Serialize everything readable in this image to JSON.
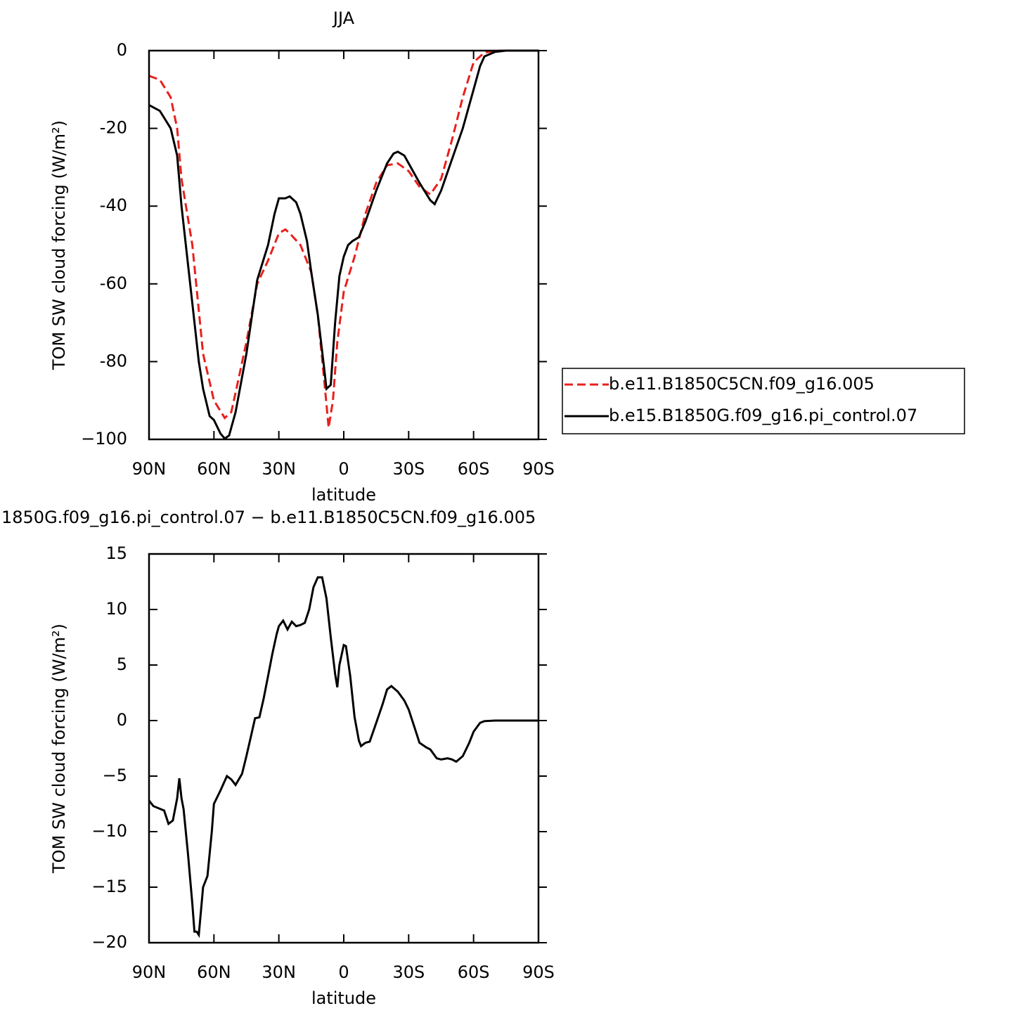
{
  "chart_data": [
    {
      "type": "line",
      "title": "JJA",
      "x_label": "latitude",
      "y_label": "TOM SW cloud forcing (W/m²)",
      "xlim": [
        90,
        -90
      ],
      "ylim": [
        -100,
        0
      ],
      "xticks": [
        {
          "value": 90,
          "label": "90N"
        },
        {
          "value": 60,
          "label": "60N"
        },
        {
          "value": 30,
          "label": "30N"
        },
        0,
        {
          "value": -30,
          "label": "30S"
        },
        {
          "value": -60,
          "label": "60S"
        },
        {
          "value": -90,
          "label": "90S"
        }
      ],
      "yticks": [
        0,
        -20,
        -40,
        -60,
        -80,
        {
          "value": -100,
          "label": "−100"
        }
      ],
      "legend": "right",
      "series": [
        {
          "name": "b.e11.B1850C5CN.f09_g16.005",
          "color": "#e8201c",
          "dash": true,
          "x": [
            90,
            85,
            80,
            77,
            75,
            70,
            65,
            60,
            55,
            52,
            50,
            45,
            40,
            35,
            30,
            27,
            25,
            20,
            15,
            12,
            9,
            7,
            5,
            3,
            0,
            -5,
            -10,
            -15,
            -20,
            -25,
            -30,
            -35,
            -40,
            -45,
            -50,
            -55,
            -60,
            -65,
            -70,
            -75,
            -80,
            -90
          ],
          "values": [
            -6.5,
            -7.5,
            -12,
            -20,
            -33,
            -50,
            -78,
            -90,
            -94.5,
            -93,
            -88,
            -75,
            -60,
            -54,
            -47,
            -46,
            -47,
            -50,
            -57,
            -68,
            -85,
            -97,
            -90,
            -75,
            -62,
            -53,
            -42,
            -34,
            -29.5,
            -29,
            -31,
            -35,
            -37,
            -33,
            -23,
            -12,
            -3,
            -0.5,
            0,
            0,
            0,
            0
          ]
        },
        {
          "name": "b.e15.B1850G.f09_g16.pi_control.07",
          "color": "#000000",
          "dash": false,
          "x": [
            90,
            85,
            80,
            77,
            75,
            70,
            67,
            65,
            62,
            60,
            57,
            55,
            53,
            50,
            45,
            40,
            35,
            32,
            30,
            27,
            25,
            22,
            20,
            17,
            15,
            12,
            9,
            8,
            6,
            4,
            2,
            0,
            -2,
            -4,
            -7,
            -10,
            -15,
            -20,
            -23,
            -25,
            -28,
            -30,
            -35,
            -40,
            -42,
            -45,
            -50,
            -55,
            -60,
            -63,
            -65,
            -70,
            -75,
            -80,
            -90
          ],
          "values": [
            -14,
            -15.5,
            -20,
            -27,
            -40,
            -65,
            -80,
            -87,
            -94,
            -95,
            -98.5,
            -99.8,
            -99,
            -93,
            -78,
            -59,
            -50,
            -42,
            -38,
            -38,
            -37.5,
            -39,
            -42,
            -49,
            -57,
            -68,
            -82,
            -87,
            -86,
            -70,
            -58,
            -53,
            -50,
            -49,
            -48,
            -44,
            -36,
            -29,
            -26.5,
            -26,
            -27,
            -29,
            -34,
            -38.5,
            -39.5,
            -36,
            -28,
            -20,
            -10,
            -4,
            -1.5,
            -0.3,
            0,
            0,
            0
          ]
        }
      ]
    },
    {
      "type": "line",
      "title": "1850G.f09_g16.pi_control.07 − b.e11.B1850C5CN.f09_g16.005",
      "x_label": "latitude",
      "y_label": "TOM SW cloud forcing (W/m²)",
      "xlim": [
        90,
        -90
      ],
      "ylim": [
        -20,
        15
      ],
      "xticks": [
        {
          "value": 90,
          "label": "90N"
        },
        {
          "value": 60,
          "label": "60N"
        },
        {
          "value": 30,
          "label": "30N"
        },
        0,
        {
          "value": -30,
          "label": "30S"
        },
        {
          "value": -60,
          "label": "60S"
        },
        {
          "value": -90,
          "label": "90S"
        }
      ],
      "yticks": [
        15,
        10,
        5,
        0,
        {
          "value": -5,
          "label": "−5"
        },
        {
          "value": -10,
          "label": "−10"
        },
        {
          "value": -15,
          "label": "−15"
        },
        {
          "value": -20,
          "label": "−20"
        }
      ],
      "series": [
        {
          "color": "#000000",
          "dash": false,
          "x": [
            90,
            88,
            83,
            81,
            79,
            77,
            76,
            75,
            74,
            72,
            70,
            69,
            68,
            67,
            65,
            63,
            61,
            60,
            57,
            54,
            52,
            50,
            47,
            45,
            43,
            41,
            39,
            37,
            35,
            33,
            31,
            30,
            28,
            26,
            24,
            22,
            20,
            18,
            16,
            14,
            12,
            10,
            8,
            6,
            4,
            3,
            2,
            0,
            -1,
            -3,
            -5,
            -7,
            -8,
            -10,
            -12,
            -15,
            -18,
            -20,
            -22,
            -25,
            -28,
            -30,
            -33,
            -35,
            -38,
            -40,
            -43,
            -45,
            -48,
            -50,
            -52,
            -55,
            -58,
            -60,
            -63,
            -65,
            -70,
            -80,
            -90
          ],
          "values": [
            -7.2,
            -7.7,
            -8.1,
            -9.3,
            -9,
            -7,
            -5.2,
            -7,
            -8,
            -12,
            -16.5,
            -19,
            -19,
            -19.3,
            -15,
            -14,
            -10,
            -7.5,
            -6.3,
            -5,
            -5.3,
            -5.8,
            -4.8,
            -3.2,
            -1.5,
            0.2,
            0.3,
            2,
            4,
            6,
            7.8,
            8.5,
            9,
            8.2,
            8.9,
            8.5,
            8.6,
            8.8,
            10,
            12,
            12.9,
            12.9,
            11,
            7.5,
            4.2,
            3,
            5,
            6.8,
            6.7,
            4,
            0.3,
            -1.8,
            -2.3,
            -2,
            -1.9,
            -0.2,
            1.5,
            2.8,
            3.1,
            2.6,
            1.8,
            1,
            -0.8,
            -2,
            -2.4,
            -2.6,
            -3.4,
            -3.5,
            -3.4,
            -3.5,
            -3.7,
            -3.2,
            -2,
            -1,
            -0.2,
            -0.05,
            0,
            0,
            0
          ]
        }
      ]
    }
  ]
}
